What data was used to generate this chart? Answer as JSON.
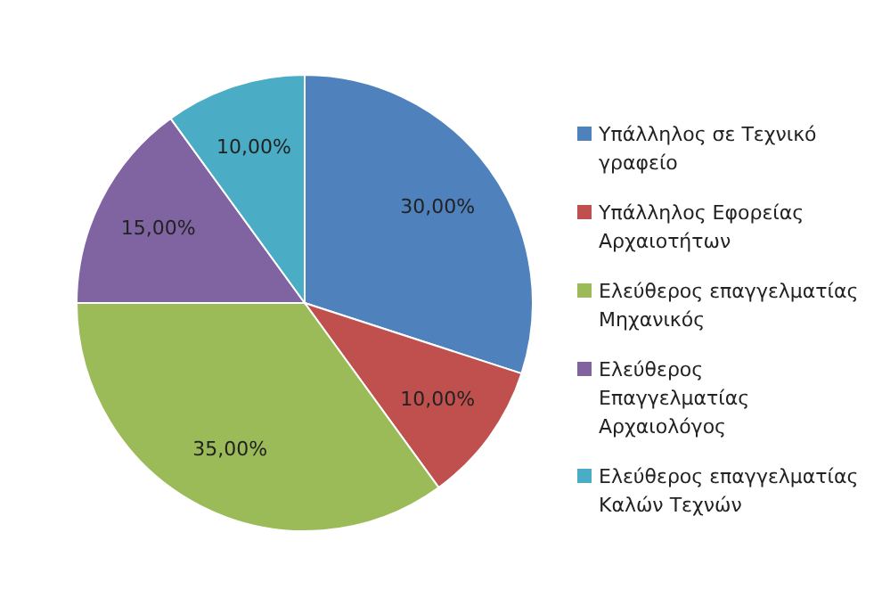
{
  "chart_data": {
    "type": "pie",
    "categories": [
      "Υπάλληλος σε Τεχνικό γραφείο",
      "Υπάλληλος Εφορείας Αρχαιοτήτων",
      "Ελεύθερος επαγγελματίας Μηχανικός",
      "Ελεύθερος Επαγγελματίας Αρχαιολόγος",
      "Ελεύθερος επαγγελματίας Καλών Τεχνών"
    ],
    "values": [
      30,
      10,
      35,
      15,
      10
    ],
    "colors": [
      "#4f81bd",
      "#c0504d",
      "#9bbb59",
      "#8064a2",
      "#4bacc6"
    ],
    "value_labels": [
      "30,00%",
      "10,00%",
      "35,00%",
      "15,00%",
      "10,00%"
    ],
    "legend": "right"
  }
}
